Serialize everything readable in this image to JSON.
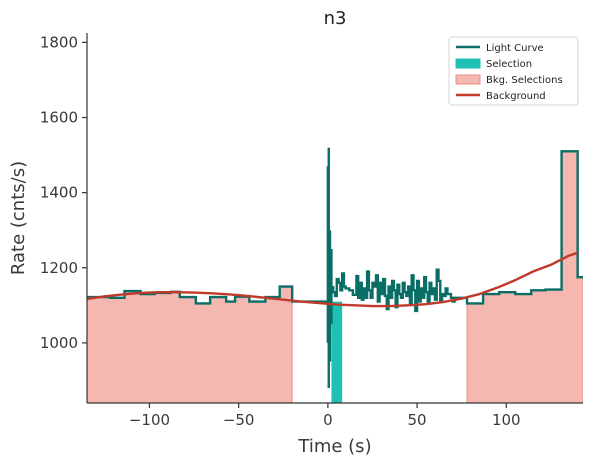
{
  "chart_data": {
    "type": "line",
    "title": "n3",
    "xlabel": "Time (s)",
    "ylabel": "Rate (cnts/s)",
    "xlim": [
      -135,
      143
    ],
    "ylim": [
      840,
      1825
    ],
    "xticks": [
      -100,
      -50,
      0,
      50,
      100
    ],
    "yticks": [
      1000,
      1200,
      1400,
      1600,
      1800
    ],
    "grid": false,
    "legend_position": "top-right",
    "colors": {
      "light_curve": "#0b6e66",
      "selection": "#1fc1b4",
      "bkg_fill": "#f4b8b0",
      "bkg_edge": "#ee9187",
      "background": "#c0392b",
      "axis": "#333333"
    },
    "series": [
      {
        "name": "Light Curve",
        "kind": "step",
        "x": [
          -135,
          -122,
          -114,
          -105,
          -97,
          -88,
          -83,
          -74,
          -66,
          -57,
          -52,
          -44,
          -35,
          -27,
          -20,
          -12,
          -8,
          0.5,
          1.5,
          3,
          4,
          5,
          6,
          7,
          8,
          9,
          10,
          12,
          14,
          16,
          17,
          18,
          19,
          20,
          21,
          22,
          23,
          24,
          25,
          26,
          27,
          28,
          29,
          30,
          31,
          32,
          33,
          34,
          35,
          36,
          37,
          38,
          39,
          40,
          41,
          42,
          43,
          44,
          45,
          46,
          47,
          48,
          49,
          50,
          51,
          52,
          53,
          54,
          55,
          56,
          57,
          58,
          59,
          60,
          61,
          62,
          63,
          64,
          65,
          66,
          67,
          69,
          70,
          71,
          72,
          73,
          74,
          75,
          78,
          79,
          87,
          96,
          105,
          114,
          122,
          131,
          140,
          143
        ],
        "y": [
          1122,
          1120,
          1138,
          1130,
          1133,
          1136,
          1122,
          1105,
          1122,
          1110,
          1123,
          1110,
          1122,
          1150,
          1110,
          1110,
          1110,
          1155,
          1148,
          1135,
          1125,
          1170,
          1160,
          1140,
          1185,
          1150,
          1145,
          1140,
          1128,
          1178,
          1120,
          1160,
          1115,
          1145,
          1120,
          1190,
          1140,
          1120,
          1160,
          1150,
          1180,
          1110,
          1160,
          1130,
          1170,
          1125,
          1090,
          1150,
          1120,
          1165,
          1140,
          1095,
          1155,
          1130,
          1120,
          1160,
          1135,
          1125,
          1150,
          1105,
          1180,
          1140,
          1085,
          1165,
          1110,
          1145,
          1120,
          1175,
          1135,
          1105,
          1160,
          1130,
          1145,
          1115,
          1195,
          1165,
          1110,
          1130,
          1125,
          1145,
          1130,
          1120,
          1110,
          1120,
          1120,
          1120,
          1120,
          1120,
          1105,
          1105,
          1130,
          1135,
          1130,
          1140,
          1142,
          1510,
          1175,
          1175
        ]
      },
      {
        "name": "Selection",
        "kind": "band",
        "x": [
          2,
          8
        ],
        "y": [
          1110,
          1110
        ]
      },
      {
        "name": "Bkg. Selections",
        "kind": "filled-step",
        "segments": [
          {
            "x": [
              -135,
              -122,
              -114,
              -105,
              -97,
              -88,
              -83,
              -74,
              -66,
              -57,
              -52,
              -44,
              -35,
              -27,
              -20
            ],
            "y": [
              1122,
              1120,
              1138,
              1130,
              1133,
              1136,
              1122,
              1105,
              1122,
              1110,
              1123,
              1110,
              1122,
              1150,
              1150
            ]
          },
          {
            "x": [
              78,
              79,
              87,
              96,
              105,
              114,
              122,
              131,
              140,
              143
            ],
            "y": [
              1105,
              1105,
              1130,
              1135,
              1130,
              1140,
              1142,
              1510,
              1175,
              1175
            ]
          }
        ]
      },
      {
        "name": "Background",
        "kind": "curve",
        "x": [
          -135,
          -125,
          -115,
          -105,
          -95,
          -85,
          -75,
          -65,
          -55,
          -45,
          -35,
          -25,
          -15,
          -5,
          5,
          15,
          25,
          35,
          45,
          55,
          65,
          75,
          85,
          95,
          105,
          115,
          125,
          135,
          140
        ],
        "y": [
          1117,
          1124,
          1129,
          1133,
          1135,
          1135,
          1134,
          1132,
          1129,
          1125,
          1120,
          1115,
          1110,
          1106,
          1102,
          1100,
          1098,
          1098,
          1100,
          1103,
          1109,
          1118,
          1130,
          1147,
          1167,
          1190,
          1208,
          1232,
          1240
        ]
      }
    ],
    "spikes": [
      {
        "x": 0.5,
        "y": [
          880,
          1520
        ]
      },
      {
        "x": 0.0,
        "y": [
          1000,
          1470
        ]
      },
      {
        "x": 1.2,
        "y": [
          950,
          1300
        ]
      },
      {
        "x": 2.0,
        "y": [
          1050,
          1250
        ]
      }
    ]
  }
}
